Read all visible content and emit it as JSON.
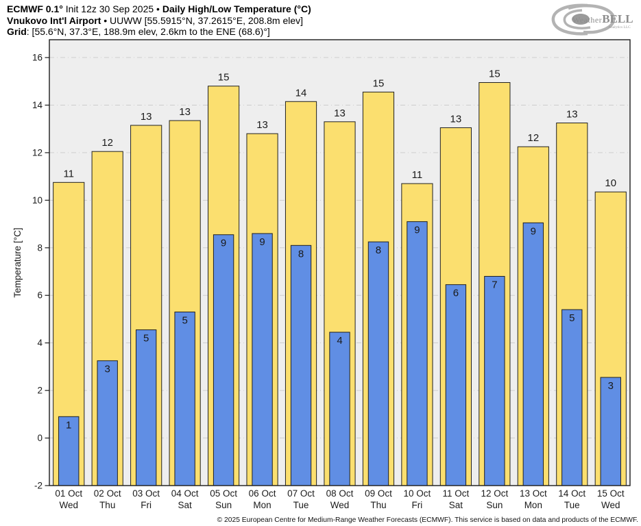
{
  "header": {
    "line1_bold1": "ECMWF 0.1°",
    "line1_mid": " Init 12z 30 Sep 2025 • ",
    "line1_bold2": "Daily High/Low Temperature (°C)",
    "line2_bold": "Vnukovo Int'l Airport",
    "line2_rest": " • UUWW [55.5915°N, 37.2615°E, 208.8m elev]",
    "line3_bold": "Grid",
    "line3_rest": ": [55.6°N, 37.3°E, 188.9m elev, 2.6km to the ENE (68.6)°]"
  },
  "logo": {
    "text_weather": "Weather",
    "text_bell": "BELL",
    "subtext": "Analytics LLC"
  },
  "footer": {
    "copyright": "© 2025 European Centre for Medium-Range Weather Forecasts (ECMWF). This service is based on data and products of the ECMWF."
  },
  "chart_data": {
    "type": "bar",
    "title": "Daily High/Low Temperature (°C)",
    "ylabel": "Temperature [°C]",
    "ylim": [
      -2,
      16.75
    ],
    "yticks": [
      -2,
      0,
      2,
      4,
      6,
      8,
      10,
      12,
      14,
      16
    ],
    "grid": true,
    "plot_bg": "#eeeeee",
    "grid_color": "#cdcdcd",
    "categories": [
      {
        "date": "01 Oct",
        "day": "Wed"
      },
      {
        "date": "02 Oct",
        "day": "Thu"
      },
      {
        "date": "03 Oct",
        "day": "Fri"
      },
      {
        "date": "04 Oct",
        "day": "Sat"
      },
      {
        "date": "05 Oct",
        "day": "Sun"
      },
      {
        "date": "06 Oct",
        "day": "Mon"
      },
      {
        "date": "07 Oct",
        "day": "Tue"
      },
      {
        "date": "08 Oct",
        "day": "Wed"
      },
      {
        "date": "09 Oct",
        "day": "Thu"
      },
      {
        "date": "10 Oct",
        "day": "Fri"
      },
      {
        "date": "11 Oct",
        "day": "Sat"
      },
      {
        "date": "12 Oct",
        "day": "Sun"
      },
      {
        "date": "13 Oct",
        "day": "Mon"
      },
      {
        "date": "14 Oct",
        "day": "Tue"
      },
      {
        "date": "15 Oct",
        "day": "Wed"
      }
    ],
    "series": [
      {
        "name": "Daily High",
        "color": "#FBDF6F",
        "values": [
          10.75,
          12.05,
          13.15,
          13.35,
          14.8,
          12.8,
          14.15,
          13.3,
          14.55,
          10.7,
          13.05,
          14.95,
          12.25,
          13.25,
          10.35
        ],
        "labels": [
          "11",
          "12",
          "13",
          "13",
          "15",
          "13",
          "14",
          "13",
          "15",
          "11",
          "13",
          "15",
          "12",
          "13",
          "10"
        ]
      },
      {
        "name": "Daily Low",
        "color": "#608EE4",
        "values": [
          0.9,
          3.25,
          4.55,
          5.3,
          8.55,
          8.6,
          8.1,
          4.45,
          8.25,
          9.1,
          6.45,
          6.8,
          9.05,
          5.4,
          2.55
        ],
        "labels": [
          "1",
          "3",
          "5",
          "5",
          "9",
          "9",
          "8",
          "4",
          "8",
          "9",
          "6",
          "7",
          "9",
          "5",
          "3"
        ]
      }
    ]
  }
}
